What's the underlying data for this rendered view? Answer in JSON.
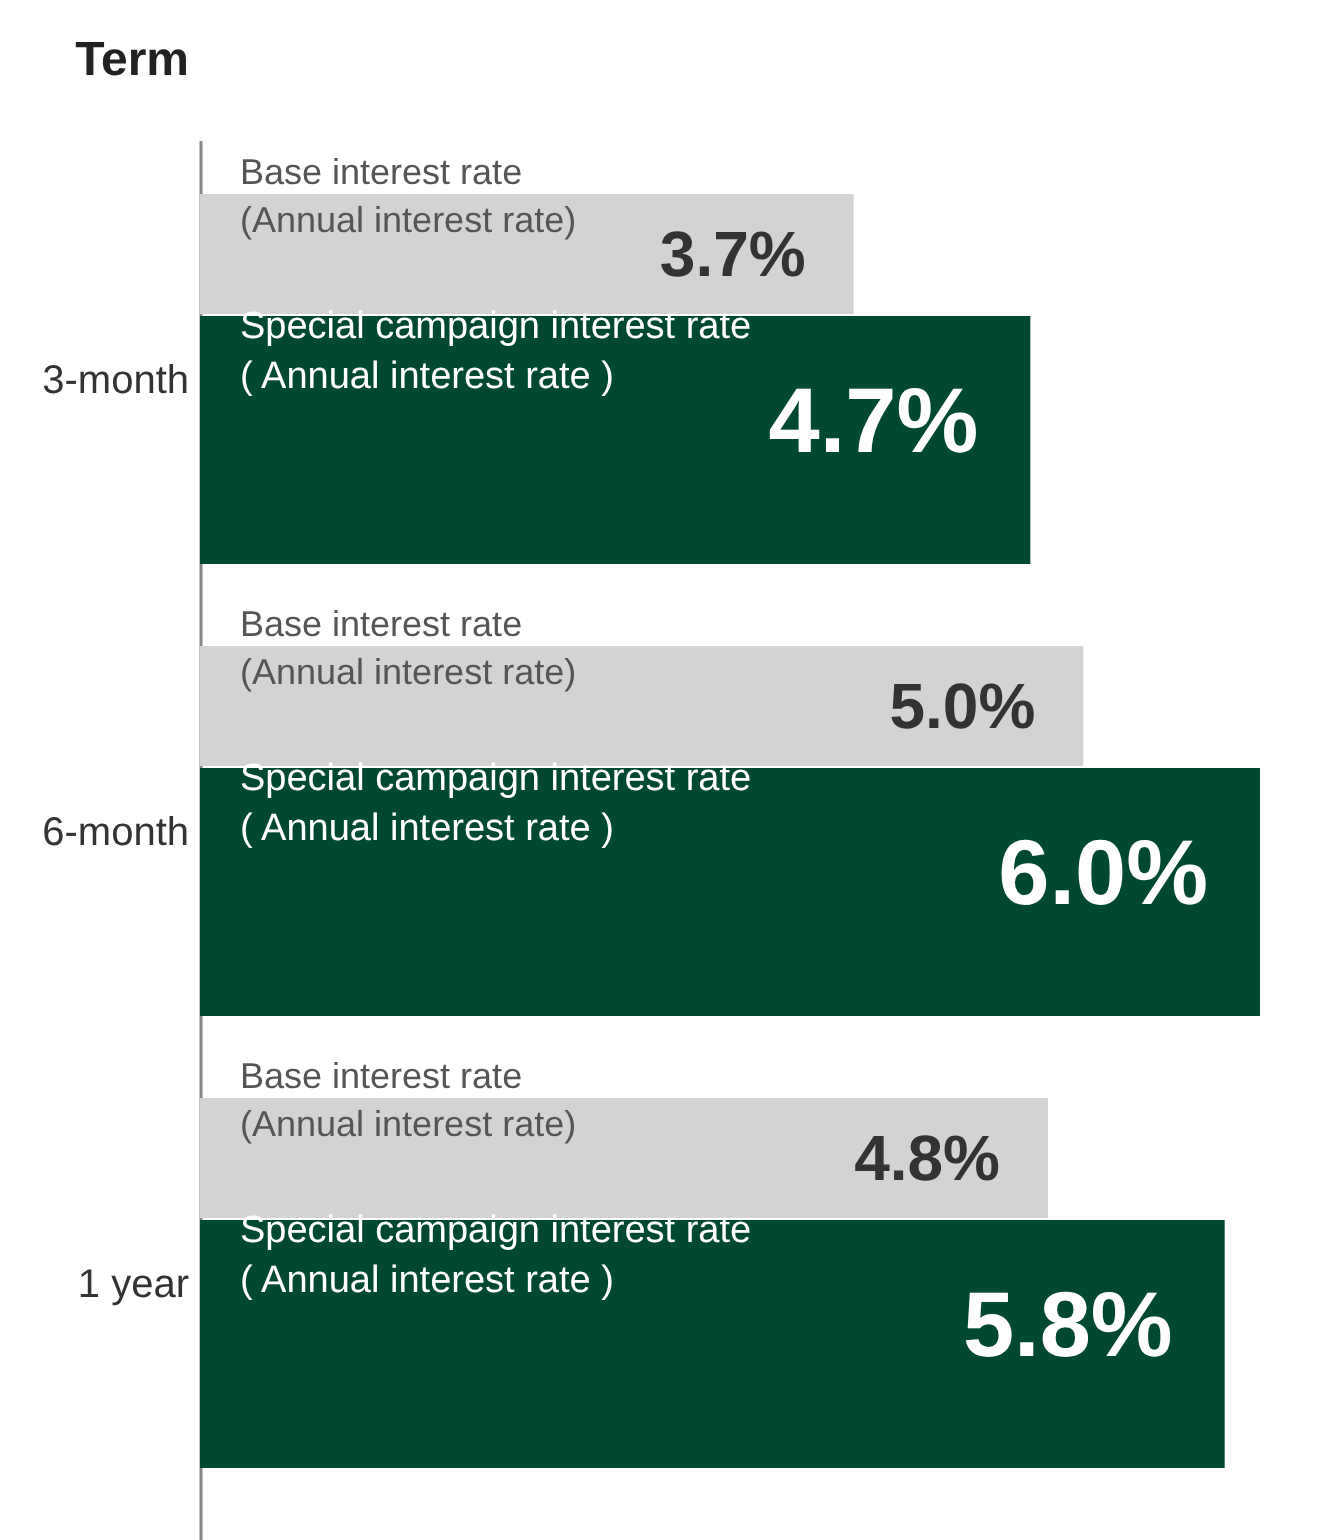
{
  "chart_data": {
    "type": "bar",
    "orientation": "horizontal",
    "ylabel": "Term",
    "categories": [
      "3-month",
      "6-month",
      "1 year"
    ],
    "series": [
      {
        "name": "Base interest rate\n(Annual interest rate)",
        "color": "#d3d3d3",
        "values": [
          3.7,
          5.0,
          4.8
        ],
        "value_labels": [
          "3.7%",
          "5.0%",
          "4.8%"
        ]
      },
      {
        "name": "Special campaign interest rate\n( Annual interest rate )",
        "color": "#004831",
        "values": [
          4.7,
          6.0,
          5.8
        ],
        "value_labels": [
          "4.7%",
          "6.0%",
          "5.8%"
        ]
      }
    ]
  }
}
